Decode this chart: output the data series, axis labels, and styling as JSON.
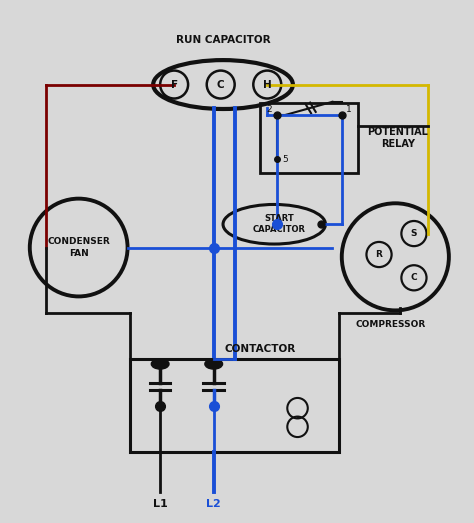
{
  "bg_color": "#d8d8d8",
  "wire_black": "#111111",
  "wire_blue": "#1a4fd6",
  "wire_red": "#7a0000",
  "wire_yellow": "#d4b800",
  "title": "RUN CAPACITOR",
  "labels": {
    "F": "F",
    "C": "C",
    "H": "H",
    "condenser": "CONDENSER\nFAN",
    "start_cap": "START\nCAPACITOR",
    "potential_relay": "POTENTIAL\nRELAY",
    "compressor": "COMPRESSOR",
    "R": "R",
    "S": "S",
    "Cc": "C",
    "contactor": "CONTACTOR",
    "L1": "L1",
    "L2": "L2",
    "num2": "2",
    "num1": "1",
    "num5": "5"
  },
  "figsize": [
    4.74,
    5.23
  ],
  "dpi": 100
}
